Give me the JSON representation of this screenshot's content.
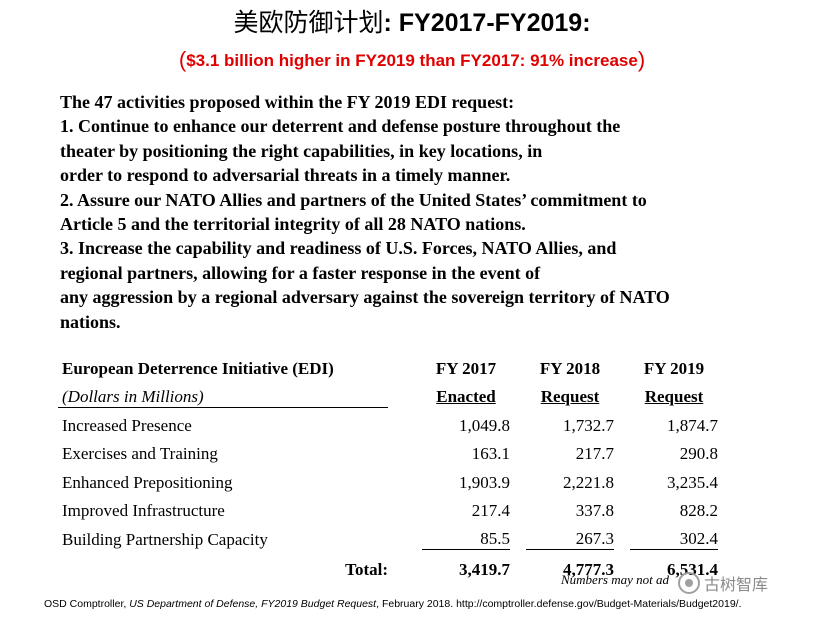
{
  "title": {
    "cn": "美欧防御计划",
    "en": ": FY2017-FY2019:"
  },
  "subtitle": {
    "open": "(",
    "text": "$3.1 billion higher in FY2019 than FY2017: 91% increase",
    "close": ")"
  },
  "body_lines": [
    "The 47 activities proposed within the FY 2019 EDI request:",
    "1. Continue to enhance our deterrent and defense posture throughout the",
    "theater by positioning the right capabilities, in key locations, in",
    "order to respond to adversarial threats in a timely manner.",
    "2. Assure our NATO Allies and partners of the United States’ commitment to",
    "Article 5 and the territorial integrity of all 28 NATO nations.",
    "3. Increase the capability and readiness of U.S. Forces, NATO Allies, and",
    "regional partners, allowing for a faster response in the event of",
    "any aggression by a regional adversary against the sovereign territory of NATO",
    "nations."
  ],
  "table": {
    "header1": [
      "European Deterrence Initiative (EDI)",
      "FY 2017",
      "FY 2018",
      "FY 2019"
    ],
    "header2": [
      "(Dollars in Millions)",
      "Enacted",
      "Request",
      "Request"
    ],
    "rows": [
      [
        "Increased Presence",
        "1,049.8",
        "1,732.7",
        "1,874.7"
      ],
      [
        "Exercises and Training",
        "163.1",
        "217.7",
        "290.8"
      ],
      [
        "Enhanced Prepositioning",
        "1,903.9",
        "2,221.8",
        "3,235.4"
      ],
      [
        "Improved Infrastructure",
        "217.4",
        "337.8",
        "828.2"
      ],
      [
        "Building Partnership Capacity",
        "85.5",
        "267.3",
        "302.4"
      ]
    ],
    "total": [
      "Total:",
      "3,419.7",
      "4,777.3",
      "6,531.4"
    ],
    "footnote": "Numbers may not ad"
  },
  "watermark": {
    "text": "古树智库",
    "icon": "wechat-icon"
  },
  "source": {
    "prefix": "OSD Comptroller, ",
    "italic": "US Department of Defense, FY2019 Budget Request",
    "suffix": ", February 2018. http://comptroller.defense.gov/Budget-Materials/Budget2019/."
  }
}
